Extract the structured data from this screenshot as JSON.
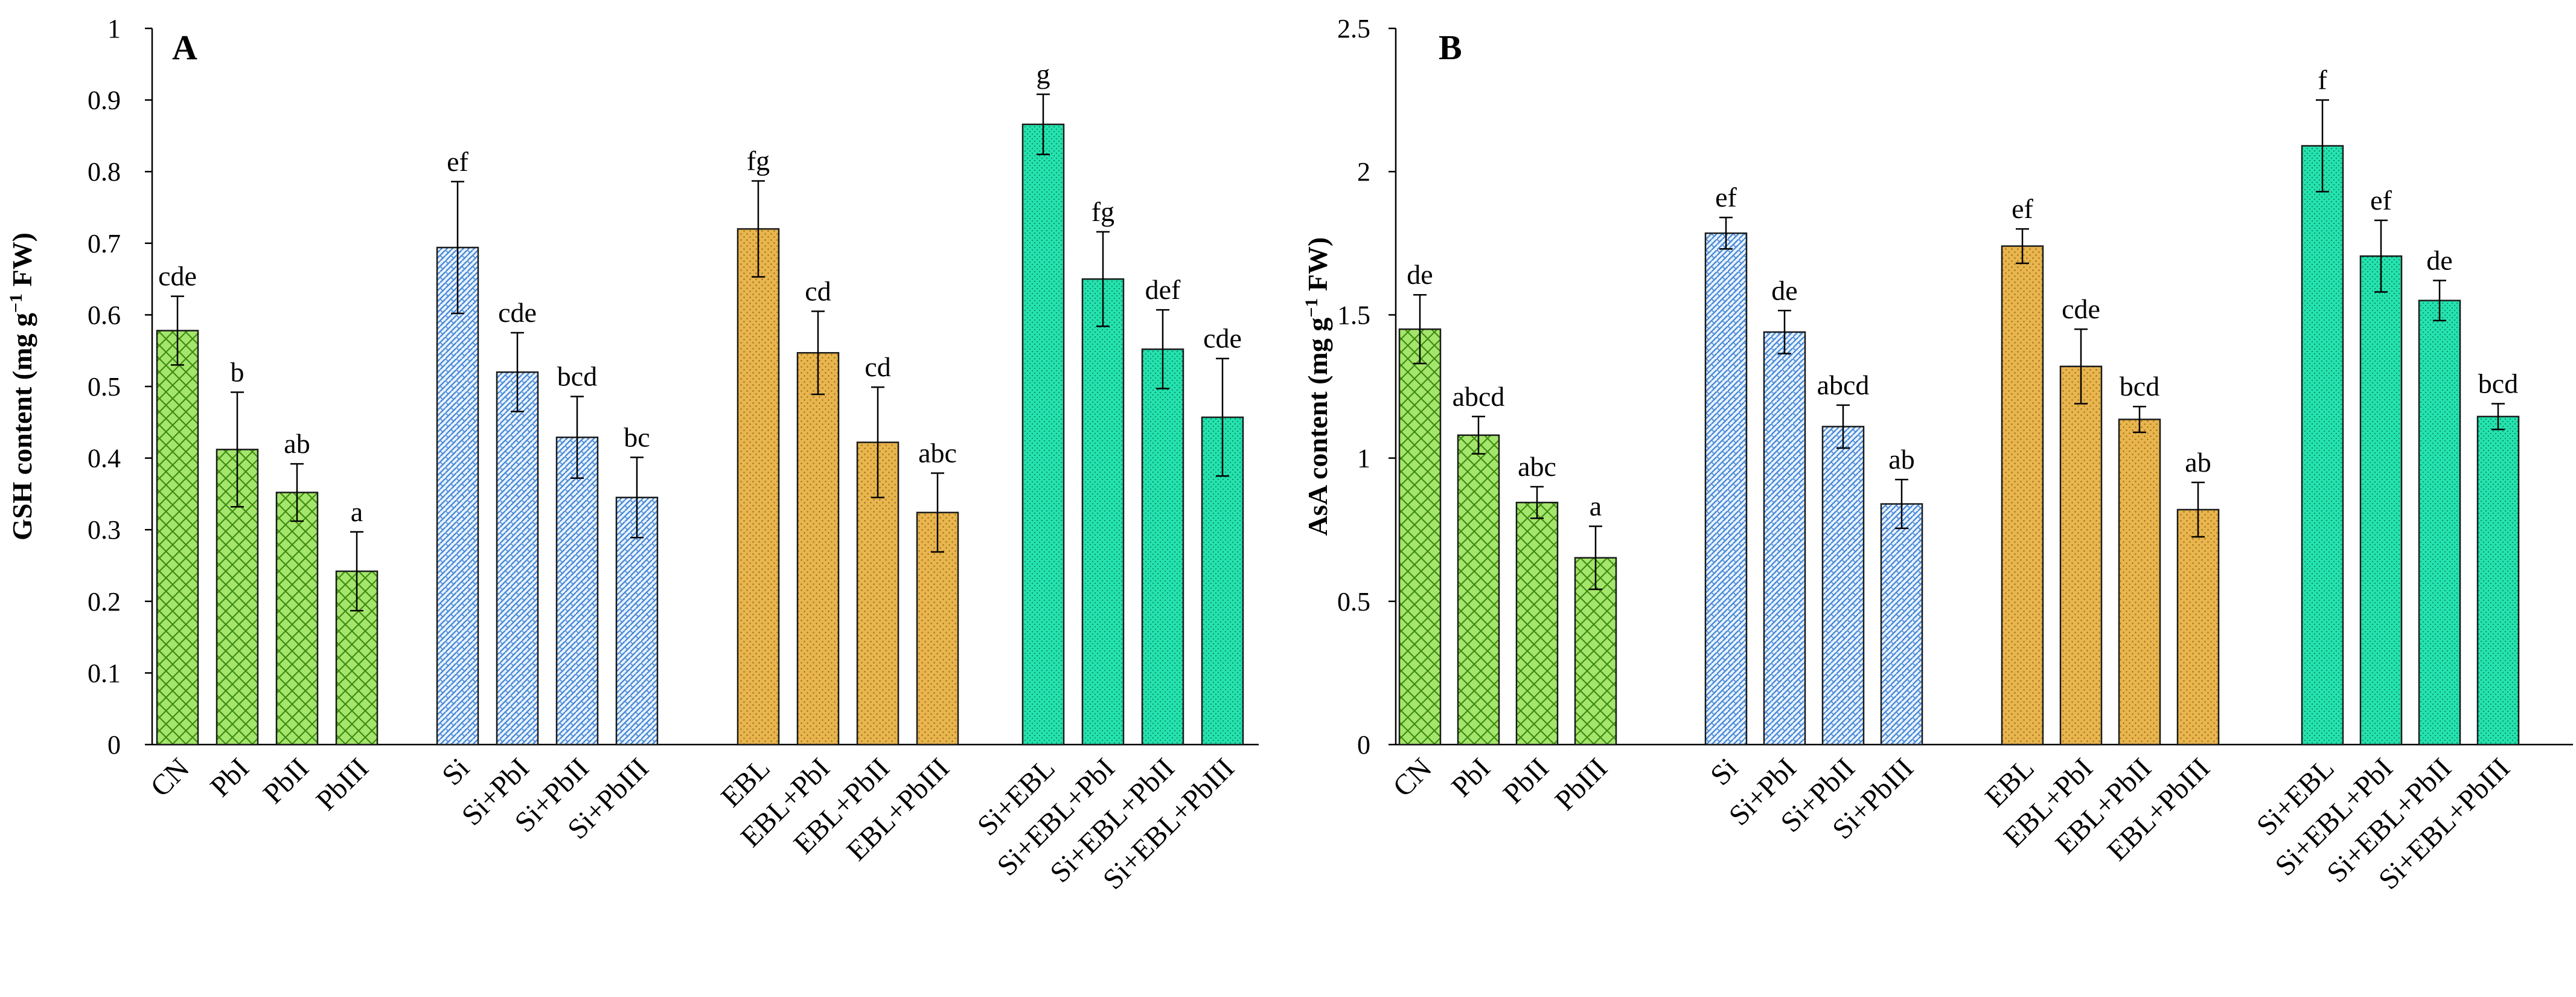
{
  "chart_data": [
    {
      "type": "bar",
      "panel_label": "A",
      "title": "",
      "xlabel": "",
      "ylabel": "GSH content (mg g",
      "ylabel_sup": "−1",
      "ylabel_tail": " FW)",
      "ylim": [
        0,
        1
      ],
      "ytick_labels": [
        "0",
        "0.1",
        "0.2",
        "0.3",
        "0.4",
        "0.5",
        "0.6",
        "0.7",
        "0.8",
        "0.9",
        "1"
      ],
      "grid": false,
      "categories": [
        "CN",
        "PbI",
        "PbII",
        "PbIII",
        "Si",
        "Si+PbI",
        "Si+PbII",
        "Si+PbIII",
        "EBL",
        "EBL+PbI",
        "EBL+PbII",
        "EBL+PbIII",
        "Si+EBL",
        "Si+EBL+PbI",
        "Si+EBL+PbII",
        "Si+EBL+PbIII"
      ],
      "values": [
        0.578,
        0.412,
        0.352,
        0.242,
        0.694,
        0.52,
        0.429,
        0.345,
        0.72,
        0.547,
        0.422,
        0.324,
        0.866,
        0.65,
        0.552,
        0.457
      ],
      "errors": [
        0.048,
        0.08,
        0.04,
        0.055,
        0.092,
        0.055,
        0.057,
        0.056,
        0.067,
        0.058,
        0.077,
        0.055,
        0.042,
        0.066,
        0.055,
        0.082
      ],
      "significance_letters": [
        "cde",
        "b",
        "ab",
        "a",
        "ef",
        "cde",
        "bcd",
        "bc",
        "fg",
        "cd",
        "cd",
        "abc",
        "g",
        "fg",
        "def",
        "cde"
      ]
    },
    {
      "type": "bar",
      "panel_label": "B",
      "title": "",
      "xlabel": "",
      "ylabel": "AsA content (mg g",
      "ylabel_sup": "−1",
      "ylabel_tail": " FW)",
      "ylim": [
        0,
        2.5
      ],
      "ytick_labels": [
        "0",
        "0.5",
        "1",
        "1.5",
        "2",
        "2.5"
      ],
      "grid": false,
      "categories": [
        "CN",
        "PbI",
        "PbII",
        "PbIII",
        "Si",
        "Si+PbI",
        "Si+PbII",
        "Si+PbIII",
        "EBL",
        "EBL+PbI",
        "EBL+PbII",
        "EBL+PbIII",
        "Si+EBL",
        "Si+EBL+PbI",
        "Si+EBL+PbII",
        "Si+EBL+PbIII"
      ],
      "values": [
        1.45,
        1.08,
        0.845,
        0.652,
        1.785,
        1.44,
        1.11,
        0.84,
        1.74,
        1.32,
        1.135,
        0.82,
        2.09,
        1.705,
        1.55,
        1.145
      ],
      "errors": [
        0.12,
        0.065,
        0.055,
        0.11,
        0.055,
        0.075,
        0.075,
        0.085,
        0.06,
        0.13,
        0.045,
        0.095,
        0.16,
        0.125,
        0.07,
        0.045
      ],
      "significance_letters": [
        "de",
        "abcd",
        "abc",
        "a",
        "ef",
        "de",
        "abcd",
        "ab",
        "ef",
        "cde",
        "bcd",
        "ab",
        "f",
        "ef",
        "de",
        "bcd"
      ]
    }
  ],
  "legend_groups": [
    {
      "name": "Control / Pb",
      "color": "#9ee06a",
      "pattern": "crosshatch"
    },
    {
      "name": "Si",
      "color": "#7fb0e0",
      "pattern": "weave"
    },
    {
      "name": "EBL",
      "color": "#e6b34a",
      "pattern": "dots"
    },
    {
      "name": "Si+EBL",
      "color": "#22e0ad",
      "pattern": "fine-dots"
    }
  ]
}
